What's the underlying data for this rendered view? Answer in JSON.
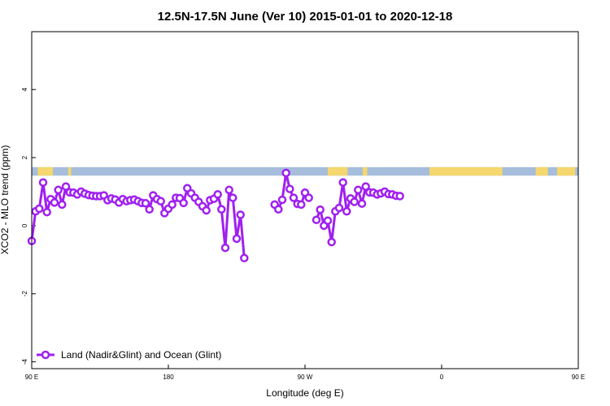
{
  "chart_data": {
    "type": "line",
    "title": "12.5N-17.5N June (Ver 10)   2015-01-01 to 2020-12-18",
    "xlabel": "Longitude (deg E)",
    "ylabel": "XCO2 - MLO trend (ppm)",
    "xlim": [
      90,
      450
    ],
    "ylim": [
      -4.2,
      5.7
    ],
    "x_ticks": [
      {
        "value": 90,
        "label": "90 E"
      },
      {
        "value": 180,
        "label": "180"
      },
      {
        "value": 270,
        "label": "90 W"
      },
      {
        "value": 360,
        "label": "0"
      },
      {
        "value": 450,
        "label": "90 E"
      },
      {
        "value": 540,
        "label": "180"
      }
    ],
    "y_ticks": [
      {
        "value": -4,
        "label": "-4"
      },
      {
        "value": -2,
        "label": "-2"
      },
      {
        "value": 0,
        "label": "0"
      },
      {
        "value": 2,
        "label": "2"
      },
      {
        "value": 4,
        "label": "4"
      }
    ],
    "grid": false,
    "legend_position": "bottom-left",
    "colors": {
      "series": "#a020f0",
      "ocean_band": "#a6bddb",
      "land_band": "#f5d76e"
    },
    "land_band_y": [
      1.47,
      1.72
    ],
    "land_segments": [
      [
        94,
        104
      ],
      [
        114,
        116
      ],
      [
        285,
        298
      ],
      [
        308,
        311
      ],
      [
        352,
        400
      ],
      [
        422,
        430
      ],
      [
        436,
        448
      ],
      [
        462,
        464
      ]
    ],
    "series": [
      {
        "name": "Land (Nadir&Glint) and Ocean (Glint)",
        "segments": [
          {
            "x": [
              90,
              92.5,
              95,
              97.5,
              100,
              102.5,
              105,
              107.5,
              110,
              112.5,
              115,
              117.5,
              120,
              122.5,
              125,
              127.5,
              130,
              132.5,
              135,
              137.5,
              140,
              142.5,
              145,
              147.5,
              150,
              152.5,
              155,
              157.5,
              160,
              162.5,
              165,
              167.5,
              170,
              172.5,
              175,
              177.5,
              180,
              182.5,
              185,
              187.5,
              190,
              192.5,
              195,
              197.5,
              200,
              202.5,
              205,
              207.5,
              210,
              212.5,
              215,
              217.5,
              220,
              222.5,
              225,
              227.5,
              230,
              232.5,
              235,
              237.5,
              240,
              242.5,
              245
            ],
            "y": [
              -0.45,
              0.42,
              0.5,
              1.27,
              0.4,
              0.78,
              0.68,
              1.05,
              0.62,
              1.15,
              0.98,
              0.97,
              0.92,
              1.0,
              0.94,
              0.9,
              0.88,
              0.87,
              0.87,
              0.89,
              0.75,
              0.8,
              0.77,
              0.68,
              0.78,
              0.72,
              0.75,
              0.77,
              0.72,
              0.67,
              0.66,
              0.48,
              0.89,
              0.78,
              0.72,
              0.37,
              0.5,
              0.62,
              0.82,
              0.81,
              0.67,
              1.1,
              0.95,
              0.82,
              0.7,
              0.57,
              0.45,
              0.75,
              0.79,
              0.92,
              0.48,
              -0.65,
              1.05,
              0.82,
              -0.38,
              0.32,
              -0.95,
              null,
              null,
              null,
              null,
              null,
              null
            ]
          },
          {
            "x": [
              250,
              252.5,
              255,
              257.5,
              260,
              262.5,
              265,
              267.5,
              270,
              272.5
            ],
            "y": [
              0.62,
              0.48,
              0.76,
              1.55,
              1.08,
              0.82,
              0.64,
              0.62,
              0.97,
              0.82
            ]
          },
          {
            "x": [
              277.5,
              280,
              282.5,
              285,
              287.5,
              290,
              292.5,
              295,
              297.5,
              300,
              302.5,
              305,
              307.5,
              310,
              312.5,
              315,
              317.5,
              320,
              322.5,
              325,
              327.5,
              330,
              332.5,
              335,
              337.5,
              340
            ],
            "y": [
              0.17,
              0.47,
              0.0,
              0.15,
              -0.48,
              0.42,
              0.52,
              1.27,
              0.42,
              0.8,
              0.7,
              1.05,
              0.65,
              1.15,
              0.98,
              0.97,
              0.92,
              0.95,
              1.0,
              0.93,
              0.92,
              0.88,
              0.87,
              null,
              null,
              null
            ]
          }
        ]
      }
    ]
  }
}
